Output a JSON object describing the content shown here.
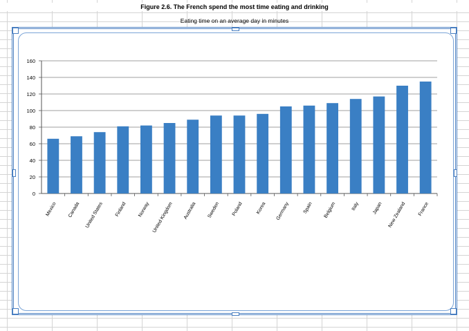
{
  "figure": {
    "title": "Figure 2.6. The French spend the most time eating and drinking",
    "subtitle": "Eating time on an average day in minutes"
  },
  "colors": {
    "bar": "#3a7fc4",
    "grid": "#7f7f7f",
    "axis": "#555555"
  },
  "chart_data": {
    "type": "bar",
    "title": "",
    "xlabel": "",
    "ylabel": "",
    "ylim": [
      0,
      160
    ],
    "yticks": [
      0,
      20,
      40,
      60,
      80,
      100,
      120,
      140,
      160
    ],
    "grid": true,
    "categories": [
      "Mexico",
      "Canada",
      "United States",
      "Finland",
      "Norway",
      "United Kingdom",
      "Australia",
      "Sweden",
      "Poland",
      "Korea",
      "Germany",
      "Spain",
      "Belgium",
      "Italy",
      "Japan",
      "New Zealand",
      "France"
    ],
    "values": [
      66,
      69,
      74,
      81,
      82,
      85,
      89,
      94,
      94,
      96,
      105,
      106,
      109,
      114,
      117,
      130,
      135
    ]
  }
}
